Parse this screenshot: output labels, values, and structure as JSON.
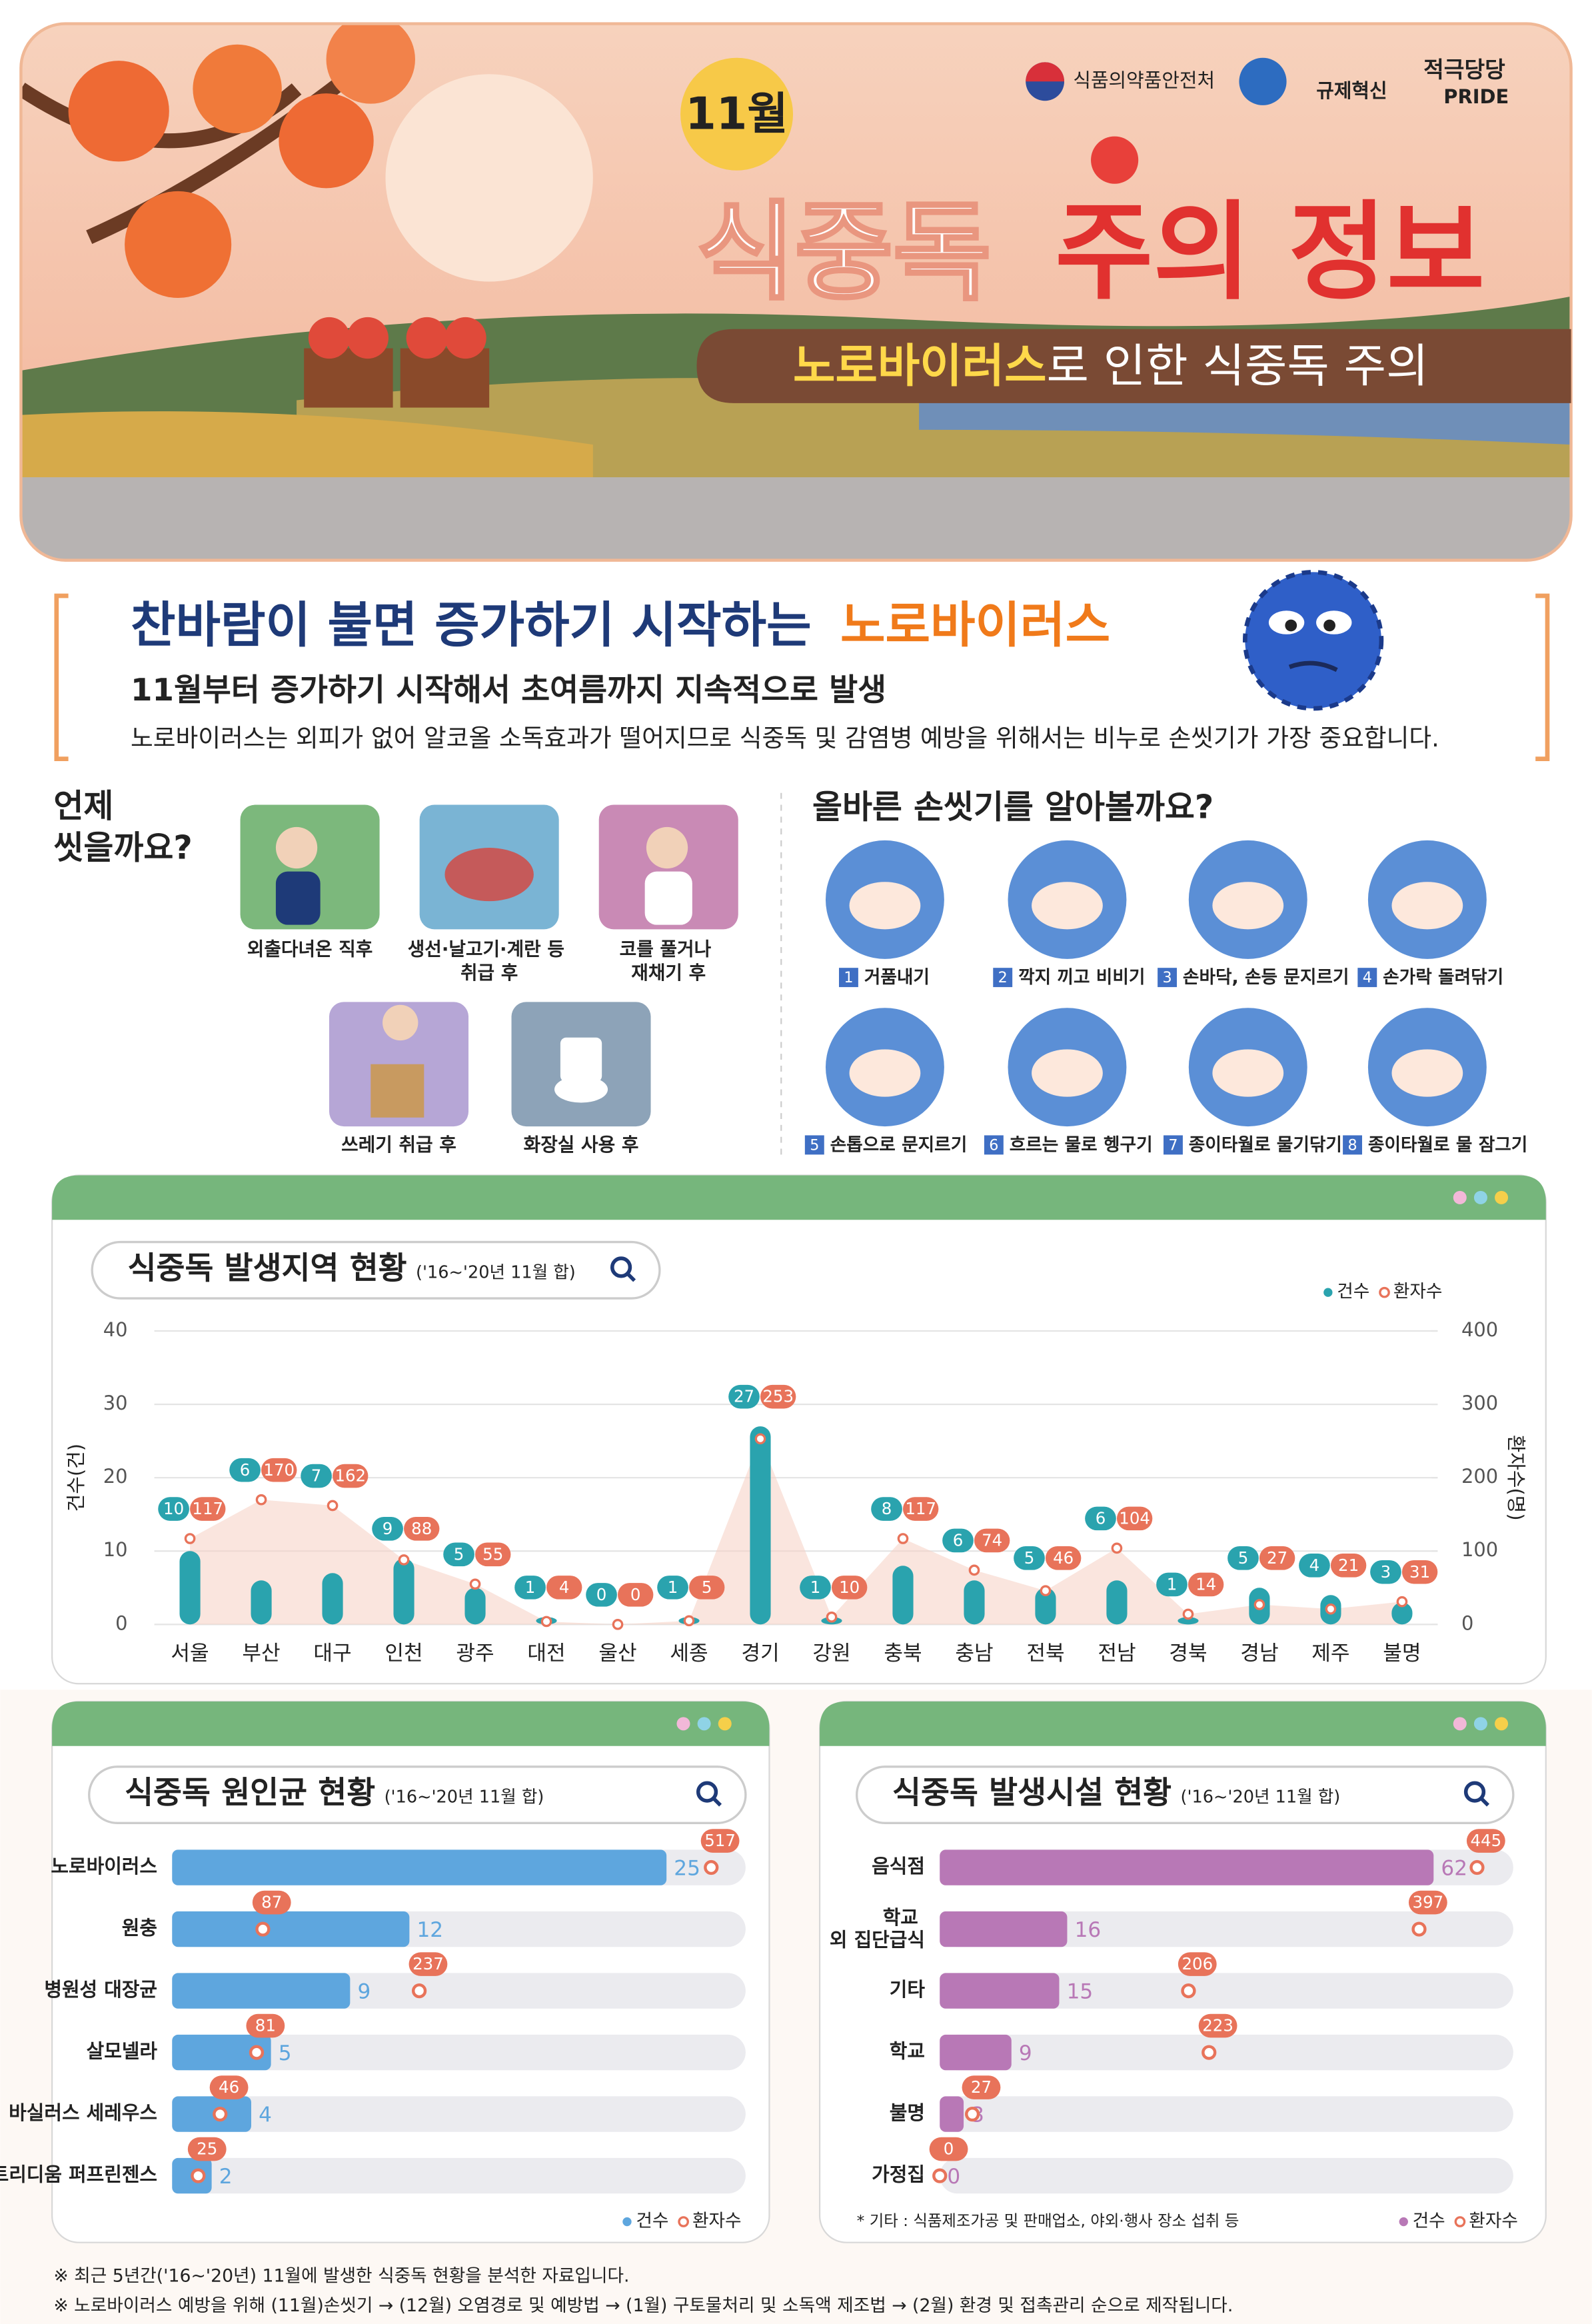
{
  "header": {
    "agency": "식품의약품안전처",
    "month": "11월",
    "reform": "규제혁신",
    "pride": "적극당당",
    "pride_sub": "PRIDE",
    "title": [
      "식중독",
      "주의 정보"
    ],
    "subtitle": [
      "노로바이러스",
      "로 인한 식중독 주의"
    ]
  },
  "intro": {
    "title": [
      "찬바람이 불면 증가하기 시작하는",
      "노로바이러스"
    ],
    "lead": "11월부터 증가하기 시작해서 초여름까지 지속적으로 발생",
    "body": "노로바이러스는 외피가 없어 알코올 소독효과가 떨어지므로 식중독 및 감염병 예방을 위해서는 비누로 손씻기가 가장 중요합니다."
  },
  "when": {
    "title": "언제 씻을까요?",
    "items": [
      "외출다녀온 직후",
      "생선·날고기·계란 등 취급 후",
      "코를 풀거나 재채기 후",
      "쓰레기 취급 후",
      "화장실 사용 후"
    ]
  },
  "handwash": {
    "title": "올바른 손씻기를 알아볼까요?",
    "steps": [
      {
        "number": 1,
        "label": "거품내기"
      },
      {
        "number": 2,
        "label": "깍지 끼고 비비기"
      },
      {
        "number": 3,
        "label": "손바닥, 손등 문지르기"
      },
      {
        "number": 4,
        "label": "손가락 돌려닦기"
      },
      {
        "number": 5,
        "label": "손톱으로 문지르기"
      },
      {
        "number": 6,
        "label": "흐르는 물로 헹구기"
      },
      {
        "number": 7,
        "label": "종이타월로 물기닦기"
      },
      {
        "number": 8,
        "label": "종이타월로 물 잠그기"
      }
    ]
  },
  "chart_data": [
    {
      "type": "bar",
      "title": "식중독 발생지역 현황",
      "subtitle": "('16~'20년 11월 합)",
      "categories": [
        "서울",
        "부산",
        "대구",
        "인천",
        "광주",
        "대전",
        "울산",
        "세종",
        "경기",
        "강원",
        "충북",
        "충남",
        "전북",
        "전남",
        "경북",
        "경남",
        "제주",
        "불명"
      ],
      "series": [
        {
          "name": "건수",
          "color": "#2aa3ae",
          "values": [
            10,
            6,
            7,
            9,
            5,
            1,
            0,
            1,
            27,
            1,
            8,
            6,
            5,
            6,
            1,
            5,
            4,
            3
          ]
        },
        {
          "name": "환자수",
          "color": "#e8735a",
          "axis": "y2",
          "values": [
            117,
            170,
            162,
            88,
            55,
            4,
            0,
            5,
            253,
            10,
            117,
            74,
            46,
            104,
            14,
            27,
            21,
            31
          ]
        }
      ],
      "ylim": [
        0,
        40
      ],
      "yticks": [
        0,
        10,
        20,
        30,
        40
      ],
      "y2lim": [
        0,
        400
      ],
      "y2ticks": [
        0,
        100,
        200,
        300,
        400
      ],
      "ylabel": "건수(건)",
      "y2label": "환자수(명)",
      "grid": true
    },
    {
      "type": "barh",
      "title": "식중독 원인균 현황",
      "subtitle": "('16~'20년 11월 합)",
      "categories": [
        "노로바이러스",
        "원충",
        "병원성 대장균",
        "살모넬라",
        "바실러스 세레우스",
        "클로스트리디움 퍼프린젠스"
      ],
      "series": [
        {
          "name": "건수",
          "color": "#5ea6de",
          "values": [
            25,
            12,
            9,
            5,
            4,
            2
          ]
        },
        {
          "name": "환자수",
          "color": "#e8735a",
          "axis": "x2",
          "values": [
            517,
            87,
            237,
            81,
            46,
            25
          ]
        }
      ],
      "xlim": [
        0,
        29
      ],
      "x2lim": [
        0,
        550
      ]
    },
    {
      "type": "barh",
      "title": "식중독 발생시설 현황",
      "subtitle": "('16~'20년 11월 합)",
      "categories": [
        "음식점",
        "학교 외 집단급식",
        "기타",
        "학교",
        "불명",
        "가정집"
      ],
      "series": [
        {
          "name": "건수",
          "color": "#b878b6",
          "values": [
            62,
            16,
            15,
            9,
            3,
            0
          ]
        },
        {
          "name": "환자수",
          "color": "#e8735a",
          "axis": "x2",
          "values": [
            445,
            397,
            206,
            223,
            27,
            0
          ]
        }
      ],
      "xlim": [
        0,
        72
      ],
      "x2lim": [
        0,
        475
      ],
      "note": "* 기타 : 식품제조가공 및 판매업소, 야외·행사 장소 섭취 등"
    }
  ],
  "footnotes": [
    "※ 최근 5년간('16~'20년) 11월에 발생한 식중독 현황을 분석한 자료입니다.",
    "※ 노로바이러스 예방을 위해 (11월)손씻기 → (12월) 오염경로 및 예방법 → (1월) 구토물처리 및 소독액 제조법 → (2월) 환경 및 접촉관리 순으로 제작됩니다."
  ]
}
